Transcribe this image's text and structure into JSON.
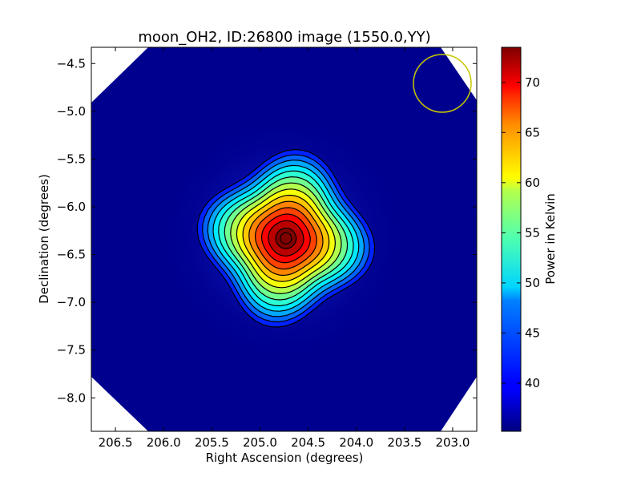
{
  "chart_data": {
    "type": "heatmap",
    "title": "moon_OH2, ID:26800 image (1550.0,YY)",
    "xlabel": "Right Ascension (degrees)",
    "ylabel": "Declination (degrees)",
    "xlim": [
      206.75,
      202.75
    ],
    "ylim": [
      -8.35,
      -4.33
    ],
    "x_ticks": [
      206.5,
      206.0,
      205.5,
      205.0,
      204.5,
      204.0,
      203.5,
      203.0
    ],
    "x_tick_labels": [
      "206.5",
      "206.0",
      "205.5",
      "205.0",
      "204.5",
      "204.0",
      "203.5",
      "203.0"
    ],
    "y_ticks": [
      -4.5,
      -5.0,
      -5.5,
      -6.0,
      -6.5,
      -7.0,
      -7.5,
      -8.0
    ],
    "y_tick_labels": [
      "−4.5",
      "−5.0",
      "−5.5",
      "−6.0",
      "−6.5",
      "−7.0",
      "−7.5",
      "−8.0"
    ],
    "source_center": {
      "ra": 204.73,
      "dec": -6.33
    },
    "peak_value": 73.5,
    "background_value": 36.5,
    "beam_circle": {
      "ra": 203.07,
      "dec": -4.72,
      "color": "#c8c800"
    },
    "colorbar": {
      "label": "Power in Kelvin",
      "min": 35.2,
      "max": 73.5,
      "ticks": [
        40,
        45,
        50,
        55,
        60,
        65,
        70
      ],
      "tick_labels": [
        "40",
        "45",
        "50",
        "55",
        "60",
        "65",
        "70"
      ],
      "colormap": "jet"
    },
    "contour_levels": [
      40,
      42.5,
      45,
      47.5,
      50,
      52.5,
      55,
      57.5,
      60,
      62.5,
      65,
      67.5,
      70,
      72.5
    ],
    "grid": false
  }
}
